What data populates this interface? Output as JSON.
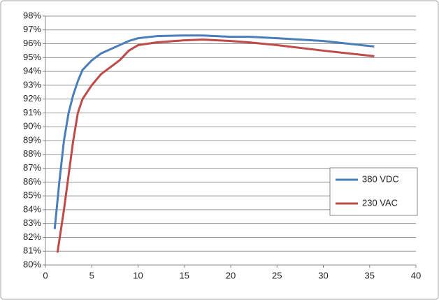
{
  "chart_data": {
    "type": "line",
    "xlim": [
      0,
      40
    ],
    "xticks": [
      0,
      5,
      10,
      15,
      20,
      25,
      30,
      35,
      40
    ],
    "ylim": [
      80,
      98
    ],
    "yticks": [
      {
        "value": 80,
        "label": "80%"
      },
      {
        "value": 81,
        "label": "81%"
      },
      {
        "value": 82,
        "label": "82%"
      },
      {
        "value": 83,
        "label": "83%"
      },
      {
        "value": 84,
        "label": "84%"
      },
      {
        "value": 85,
        "label": "85%"
      },
      {
        "value": 86,
        "label": "86%"
      },
      {
        "value": 87,
        "label": "87%"
      },
      {
        "value": 88,
        "label": "88%"
      },
      {
        "value": 89,
        "label": "89%"
      },
      {
        "value": 90,
        "label": "90%"
      },
      {
        "value": 91,
        "label": "91%"
      },
      {
        "value": 92,
        "label": "92%"
      },
      {
        "value": 93,
        "label": "93%"
      },
      {
        "value": 94,
        "label": "94%"
      },
      {
        "value": 95,
        "label": "95%"
      },
      {
        "value": 96,
        "label": "96%"
      },
      {
        "value": 97,
        "label": "97%"
      },
      {
        "value": 98,
        "label": "98%"
      }
    ],
    "grid": true,
    "legend": "right",
    "series": [
      {
        "name": "380 VDC",
        "color": "#4a7ebb",
        "x": [
          1,
          1.5,
          2,
          2.5,
          3,
          3.5,
          4,
          5,
          6,
          7,
          8,
          9,
          10,
          12,
          15,
          17,
          20,
          22,
          25,
          30,
          35.5
        ],
        "values": [
          82.6,
          86,
          89,
          91,
          92.3,
          93.3,
          94.1,
          94.8,
          95.3,
          95.6,
          95.9,
          96.2,
          96.4,
          96.55,
          96.6,
          96.6,
          96.5,
          96.5,
          96.4,
          96.2,
          95.8
        ]
      },
      {
        "name": "230 VAC",
        "color": "#be4b48",
        "x": [
          1.3,
          2,
          2.5,
          3,
          3.5,
          4,
          5,
          6,
          7,
          8,
          9,
          10,
          12,
          15,
          17,
          20,
          22,
          25,
          30,
          35.5
        ],
        "values": [
          80.9,
          84,
          86.5,
          89,
          91,
          92,
          93,
          93.8,
          94.3,
          94.8,
          95.5,
          95.9,
          96.1,
          96.25,
          96.3,
          96.2,
          96.1,
          95.9,
          95.5,
          95.1
        ]
      }
    ]
  }
}
